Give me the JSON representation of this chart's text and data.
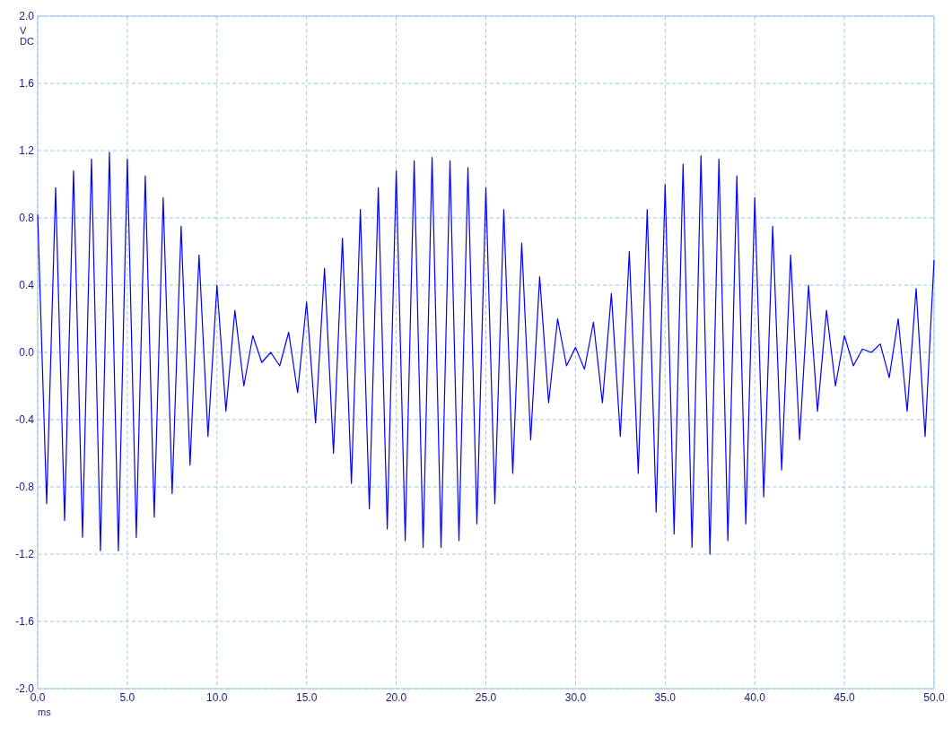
{
  "chart_data": {
    "type": "line",
    "xlabel": "ms",
    "ylabel": "V DC",
    "x": [
      0,
      0.5,
      1,
      1.5,
      2,
      2.5,
      3,
      3.5,
      4,
      4.5,
      5,
      5.5,
      6,
      6.5,
      7,
      7.5,
      8,
      8.5,
      9,
      9.5,
      10,
      10.5,
      11,
      11.5,
      12,
      12.5,
      13,
      13.5,
      14,
      14.5,
      15,
      15.5,
      16,
      16.5,
      17,
      17.5,
      18,
      18.5,
      19,
      19.5,
      20,
      20.5,
      21,
      21.5,
      22,
      22.5,
      23,
      23.5,
      24,
      24.5,
      25,
      25.5,
      26,
      26.5,
      27,
      27.5,
      28,
      28.5,
      29,
      29.5,
      30,
      30.5,
      31,
      31.5,
      32,
      32.5,
      33,
      33.5,
      34,
      34.5,
      35,
      35.5,
      36,
      36.5,
      37,
      37.5,
      38,
      38.5,
      39,
      39.5,
      40,
      40.5,
      41,
      41.5,
      42,
      42.5,
      43,
      43.5,
      44,
      44.5,
      45,
      45.5,
      46,
      46.5,
      47,
      47.5,
      48,
      48.5,
      49,
      49.5,
      50
    ],
    "series": [
      {
        "color": "#0000ff",
        "values": [
          0.82,
          -0.9,
          0.98,
          -1.0,
          1.08,
          -1.1,
          1.15,
          -1.18,
          1.19,
          -1.18,
          1.15,
          -1.1,
          1.05,
          -0.98,
          0.92,
          -0.84,
          0.75,
          -0.67,
          0.58,
          -0.5,
          0.4,
          -0.35,
          0.25,
          -0.2,
          0.1,
          -0.06,
          0.0,
          -0.08,
          0.12,
          -0.24,
          0.3,
          -0.42,
          0.5,
          -0.6,
          0.68,
          -0.78,
          0.85,
          -0.93,
          0.98,
          -1.05,
          1.08,
          -1.12,
          1.14,
          -1.16,
          1.16,
          -1.16,
          1.14,
          -1.12,
          1.1,
          -1.02,
          0.98,
          -0.9,
          0.85,
          -0.72,
          0.65,
          -0.52,
          0.45,
          -0.3,
          0.2,
          -0.08,
          0.03,
          -0.1,
          0.18,
          -0.3,
          0.35,
          -0.5,
          0.6,
          -0.72,
          0.85,
          -0.95,
          1.0,
          -1.08,
          1.12,
          -1.16,
          1.17,
          -1.2,
          1.15,
          -1.12,
          1.05,
          -1.02,
          0.92,
          -0.86,
          0.75,
          -0.7,
          0.58,
          -0.52,
          0.4,
          -0.35,
          0.25,
          -0.2,
          0.1,
          -0.08,
          0.02,
          0.0,
          0.05,
          -0.15,
          0.2,
          -0.35,
          0.38,
          -0.5,
          0.55
        ]
      }
    ],
    "xlim": [
      0,
      50
    ],
    "xticks": [
      {
        "value": 0,
        "label": "0.0"
      },
      {
        "value": 5,
        "label": "5.0"
      },
      {
        "value": 10,
        "label": "10.0"
      },
      {
        "value": 15,
        "label": "15.0"
      },
      {
        "value": 20,
        "label": "20.0"
      },
      {
        "value": 25,
        "label": "25.0"
      },
      {
        "value": 30,
        "label": "30.0"
      },
      {
        "value": 35,
        "label": "35.0"
      },
      {
        "value": 40,
        "label": "40.0"
      },
      {
        "value": 45,
        "label": "45.0"
      },
      {
        "value": 50,
        "label": "50.0"
      }
    ],
    "ylim": [
      -2,
      2
    ],
    "yticks": [
      {
        "value": -2,
        "label": "-2.0"
      },
      {
        "value": -1.6,
        "label": "-1.6"
      },
      {
        "value": -1.2,
        "label": "-1.2"
      },
      {
        "value": -0.8,
        "label": "-0.8"
      },
      {
        "value": -0.4,
        "label": "-0.4"
      },
      {
        "value": 0,
        "label": "0.0"
      },
      {
        "value": 0.4,
        "label": "0.4"
      },
      {
        "value": 0.8,
        "label": "0.8"
      },
      {
        "value": 1.2,
        "label": "1.2"
      },
      {
        "value": 1.6,
        "label": "1.6"
      },
      {
        "value": 2,
        "label": "2.0"
      }
    ],
    "grid": true,
    "line_style": "solid",
    "marker": "none"
  }
}
